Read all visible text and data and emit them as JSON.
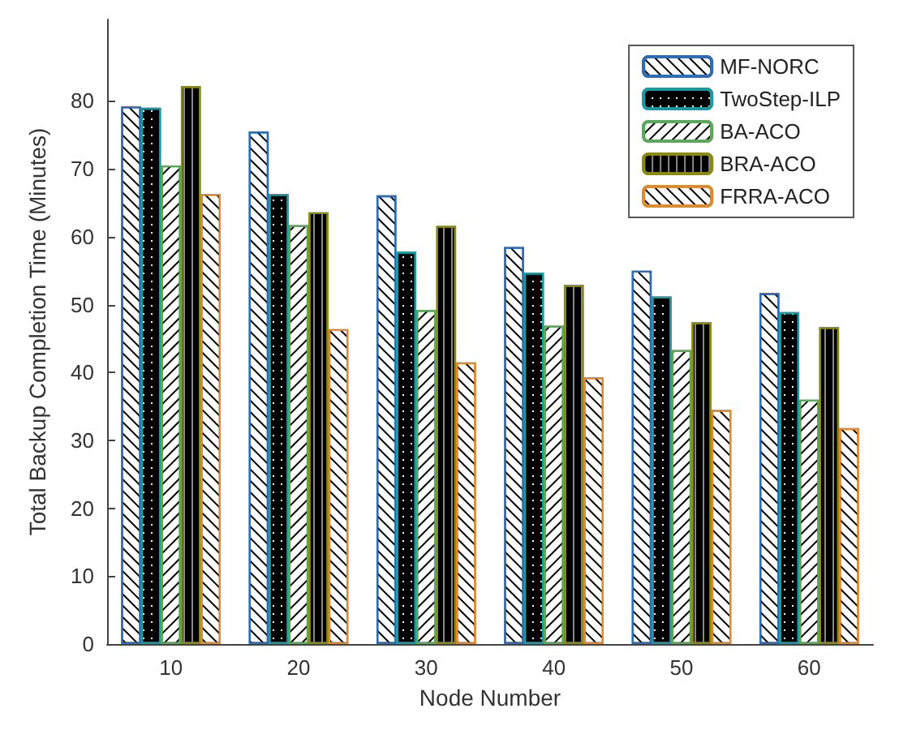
{
  "chart_data": {
    "type": "bar",
    "xlabel": "Node Number",
    "ylabel": "Total Backup Completion Time (Minutes)",
    "categories": [
      "10",
      "20",
      "30",
      "40",
      "50",
      "60"
    ],
    "series": [
      {
        "name": "MF-NORC",
        "color": "#2e6db4",
        "values": [
          79.2,
          75.5,
          66.1,
          58.5,
          55,
          51.7
        ]
      },
      {
        "name": "TwoStep-ILP",
        "color": "#1a9aa0",
        "values": [
          79,
          66.3,
          57.8,
          54.7,
          51.2,
          48.9
        ]
      },
      {
        "name": "BA-ACO",
        "color": "#5aa85a",
        "values": [
          70.5,
          61.7,
          49.2,
          46.9,
          43.3,
          36
        ]
      },
      {
        "name": "BRA-ACO",
        "color": "#8a8a10",
        "values": [
          82.2,
          63.6,
          61.6,
          52.9,
          47.4,
          46.7
        ]
      },
      {
        "name": "FRRA-ACO",
        "color": "#e08a30",
        "values": [
          66.3,
          46.4,
          41.5,
          39.3,
          34.5,
          31.8
        ]
      }
    ],
    "ylim": [
      0,
      92
    ],
    "yticks": [
      0,
      10,
      20,
      30,
      40,
      50,
      60,
      70,
      80
    ],
    "grid": false,
    "legend": "top right"
  }
}
